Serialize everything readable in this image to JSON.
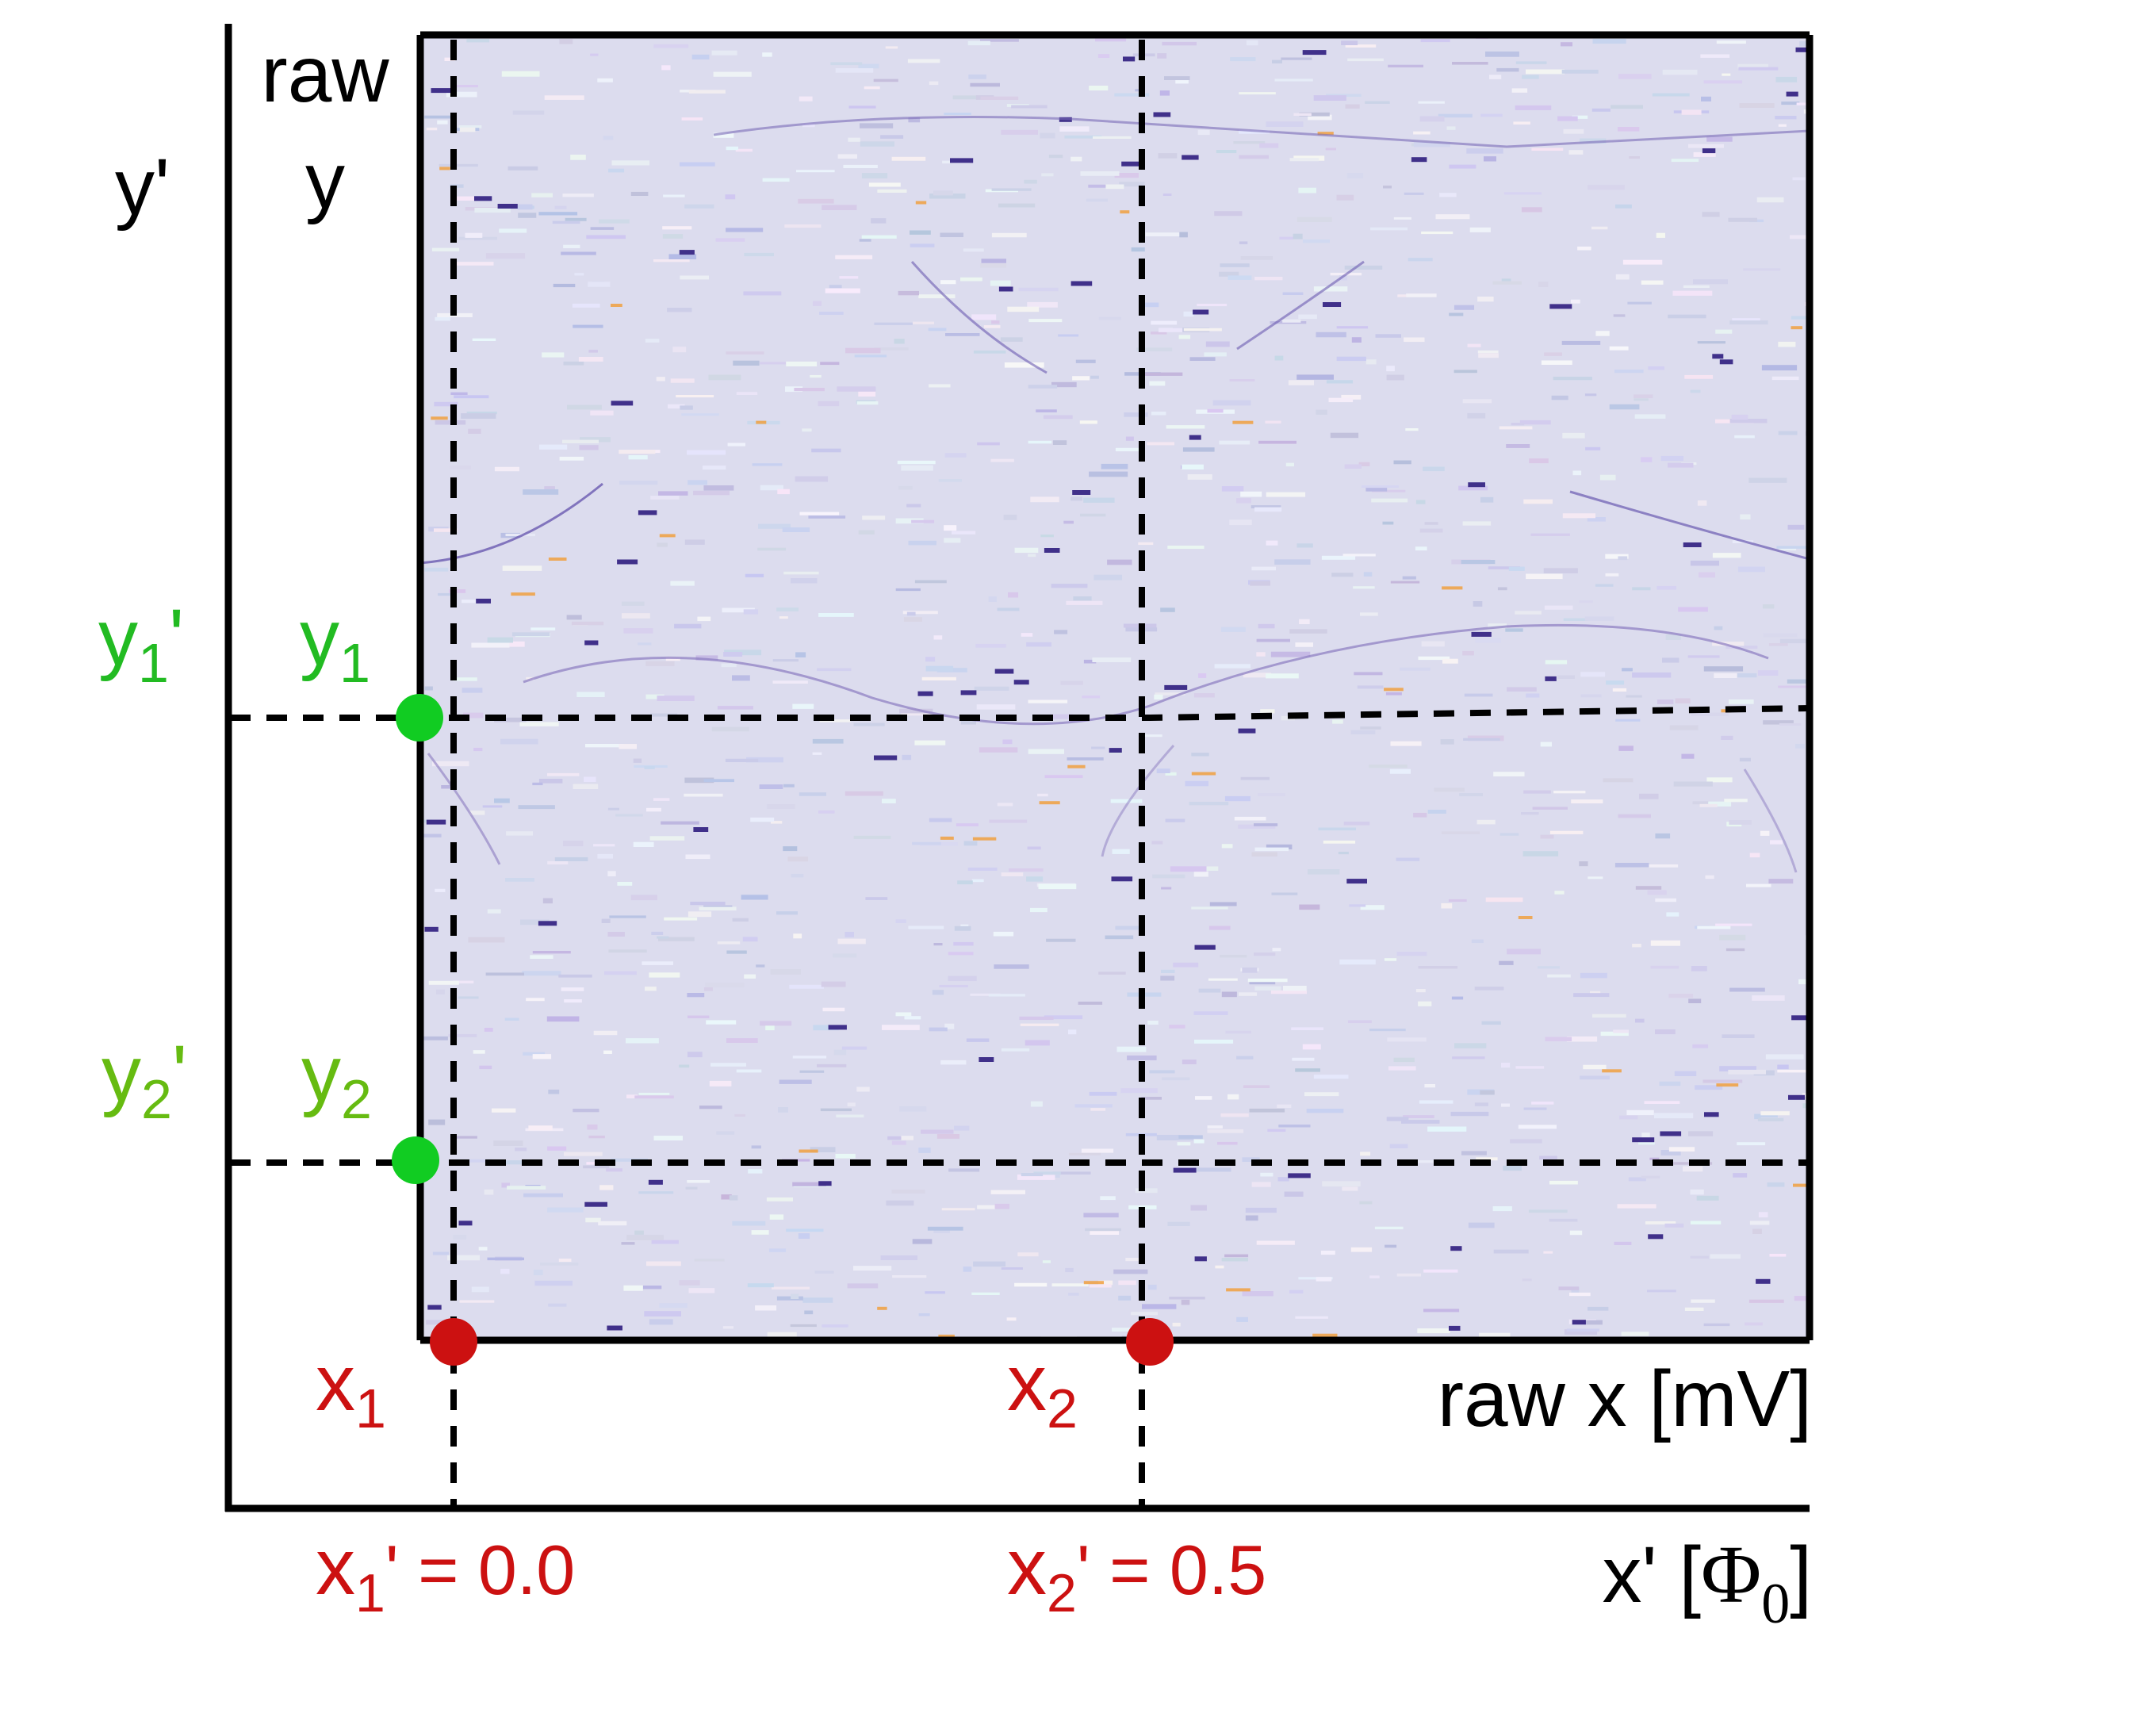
{
  "colors": {
    "heatmap_background": "#dcdcee",
    "heatmap_dark": "#40308a",
    "heatmap_orange": "#f0a040",
    "green_labels": "#22bb22",
    "green_labels_light": "#66bb11",
    "green_dot": "#11cc22",
    "red": "#cc1111",
    "black": "#000000"
  },
  "labels": {
    "raw_y_line1": "raw",
    "raw_y_line2": "y",
    "y_prime": "y'",
    "raw_x": "raw x [mV]",
    "x_prime": "x' [",
    "x_prime_symbol": "Φ",
    "x_prime_subscript": "0",
    "x_prime_close": "]",
    "y1_base": "y",
    "y1_sub": "1",
    "y1p_base": "y",
    "y1p_sub": "1",
    "y1p_prime": "'",
    "y2_base": "y",
    "y2_sub": "2",
    "y2p_base": "y",
    "y2p_sub": "2",
    "y2p_prime": "'",
    "x1_base": "x",
    "x1_sub": "1",
    "x2_base": "x",
    "x2_sub": "2",
    "x1p_base": "x",
    "x1p_sub": "1",
    "x1p_value": "' = 0.0",
    "x2p_base": "x",
    "x2p_sub": "2",
    "x2p_value": "' = 0.5"
  },
  "calibration_points": {
    "x1_prime": 0.0,
    "x2_prime": 0.5,
    "x_prime_unit": "Φ0",
    "raw_x_unit": "mV"
  }
}
